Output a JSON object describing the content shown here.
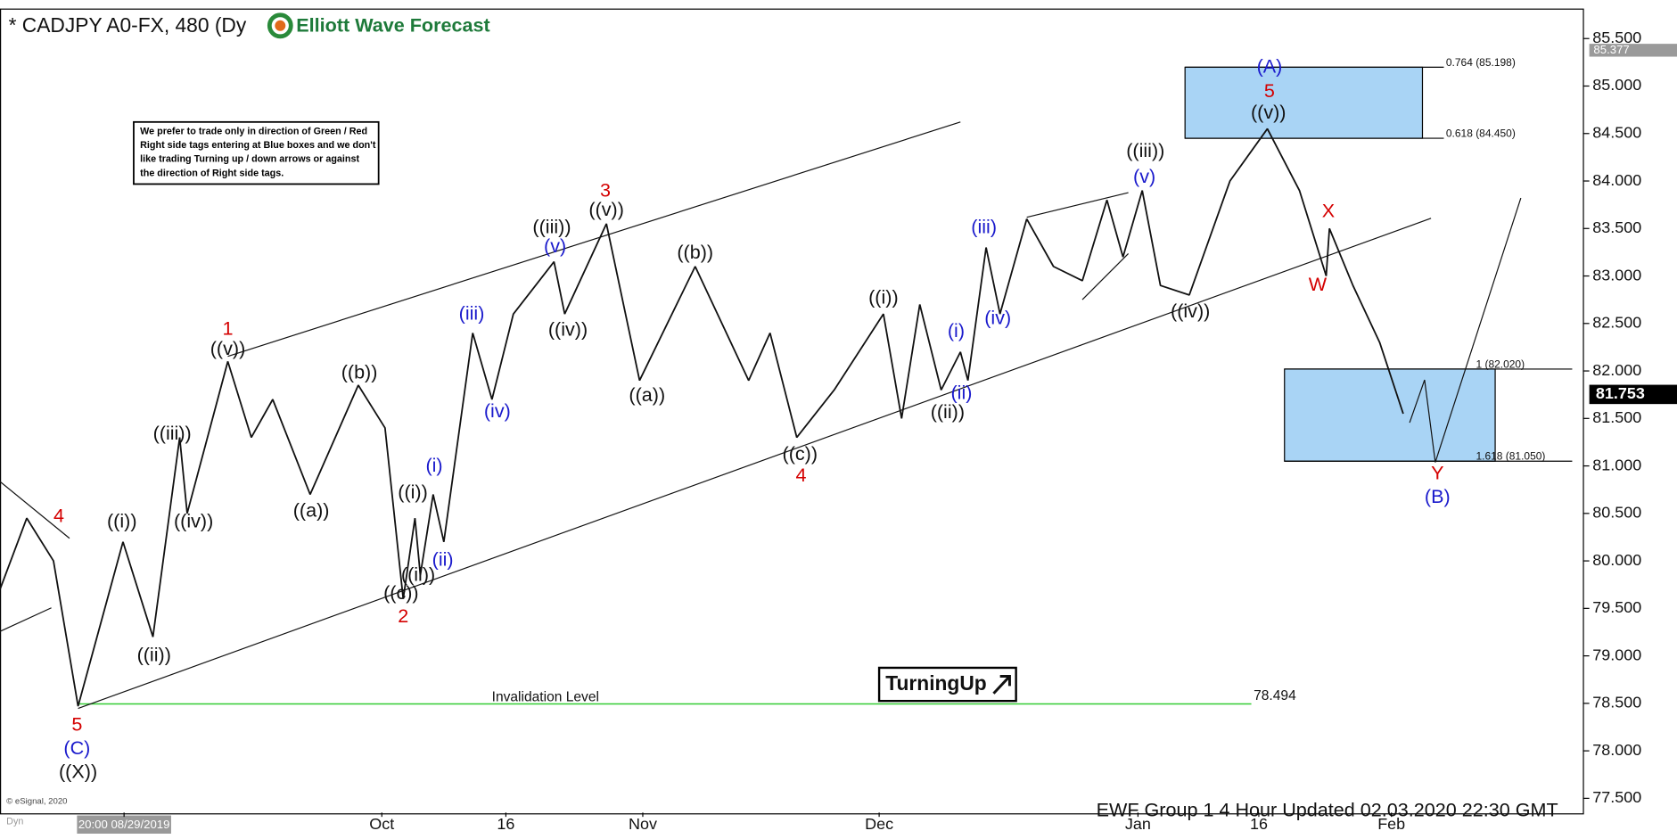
{
  "chart_data": {
    "type": "line",
    "title": "* CADJPY A0-FX, 480 (Dy",
    "logo": "Elliott Wave Forecast",
    "note": [
      "We prefer to trade only in direction of Green / Red",
      "Right side tags entering at Blue boxes and we don't",
      "like trading Turning up / down arrows or against",
      "the direction of Right side tags."
    ],
    "badge": "TurningUp",
    "footer": "EWF Group 1 4 Hour  Updated 02.03.2020 22:30 GMT",
    "credit": "© eSignal, 2020",
    "mode": "Dyn",
    "xlim": [
      0,
      296
    ],
    "ylim": [
      77.35,
      85.8
    ],
    "xticks": [
      {
        "value": 23.2,
        "label": "20:00 08/29/2019"
      },
      {
        "value": 71.4,
        "label": "Oct"
      },
      {
        "value": 94.6,
        "label": "16"
      },
      {
        "value": 120.2,
        "label": "Nov"
      },
      {
        "value": 164.4,
        "label": "Dec"
      },
      {
        "value": 212.8,
        "label": "Jan"
      },
      {
        "value": 235.4,
        "label": "16"
      },
      {
        "value": 260.2,
        "label": "Feb"
      }
    ],
    "yticks": [
      {
        "value": 77.5,
        "label": "77.500"
      },
      {
        "value": 78,
        "label": "78.000"
      },
      {
        "value": 78.5,
        "label": "78.500"
      },
      {
        "value": 79,
        "label": "79.000"
      },
      {
        "value": 79.5,
        "label": "79.500"
      },
      {
        "value": 80,
        "label": "80.000"
      },
      {
        "value": 80.5,
        "label": "80.500"
      },
      {
        "value": 81,
        "label": "81.000"
      },
      {
        "value": 81.5,
        "label": "81.500"
      },
      {
        "value": 82,
        "label": "82.000"
      },
      {
        "value": 82.5,
        "label": "82.500"
      },
      {
        "value": 83,
        "label": "83.000"
      },
      {
        "value": 83.5,
        "label": "83.500"
      },
      {
        "value": 84,
        "label": "84.000"
      },
      {
        "value": 84.5,
        "label": "84.500"
      },
      {
        "value": 85,
        "label": "85.000"
      },
      {
        "value": 85.5,
        "label": "85.500"
      }
    ],
    "series": [
      {
        "name": "CADJPY",
        "color": "#111111",
        "x": [
          0,
          5,
          10,
          14.6,
          23,
          28.6,
          33.6,
          35,
          42.6,
          47,
          51,
          58,
          67,
          72,
          75.4,
          77.6,
          78.6,
          81,
          83,
          88.4,
          92,
          96,
          103.6,
          105.6,
          113.4,
          119.6,
          130,
          140,
          144,
          149,
          156,
          165.2,
          168.6,
          172,
          176,
          179.6,
          181,
          184.4,
          187,
          192,
          197,
          202.4,
          207,
          210,
          213.6,
          217,
          222.4,
          230,
          237,
          243,
          248,
          248.6,
          253,
          258,
          262.4
        ],
        "values": [
          79.7,
          80.45,
          80.0,
          78.47,
          80.2,
          79.2,
          81.3,
          80.5,
          82.1,
          81.3,
          81.7,
          80.7,
          81.85,
          81.4,
          79.6,
          80.45,
          79.85,
          80.7,
          80.2,
          82.4,
          81.7,
          82.6,
          83.15,
          82.6,
          83.55,
          81.9,
          83.1,
          81.9,
          82.4,
          81.3,
          81.8,
          82.6,
          81.5,
          82.7,
          81.8,
          82.2,
          81.9,
          83.3,
          82.6,
          83.6,
          83.1,
          82.95,
          83.8,
          83.2,
          83.9,
          82.9,
          82.8,
          84.0,
          84.55,
          83.9,
          83.0,
          83.5,
          82.9,
          82.3,
          81.55
        ]
      }
    ],
    "zones": [
      {
        "color": "#a9d4f5",
        "ylim": [
          84.45,
          85.198
        ],
        "labels": [
          "0.764 (85.198)",
          "0.618 (84.450)"
        ]
      },
      {
        "color": "#a9d4f5",
        "ylim": [
          81.05,
          82.02
        ],
        "labels": [
          "1 (82.020)",
          "1.618 (81.050)"
        ]
      }
    ],
    "invalidation": {
      "label": "Invalidation Level",
      "value": 78.494,
      "color": "#33cc33"
    },
    "high_marker": 85.377,
    "last_price": 81.753,
    "wave_labels": [
      {
        "text": "4",
        "color": "#d40000"
      },
      {
        "text": "5",
        "color": "#d40000"
      },
      {
        "text": "(C)",
        "color": "#1a1acc"
      },
      {
        "text": "((X))",
        "color": "#111111"
      },
      {
        "text": "((i))",
        "color": "#111111"
      },
      {
        "text": "((ii))",
        "color": "#111111"
      },
      {
        "text": "((iii))",
        "color": "#111111"
      },
      {
        "text": "((iv))",
        "color": "#111111"
      },
      {
        "text": "((v))",
        "color": "#111111"
      },
      {
        "text": "1",
        "color": "#d40000"
      },
      {
        "text": "((a))",
        "color": "#111111"
      },
      {
        "text": "((b))",
        "color": "#111111"
      },
      {
        "text": "((c))",
        "color": "#111111"
      },
      {
        "text": "2",
        "color": "#d40000"
      },
      {
        "text": "((i))",
        "color": "#111111"
      },
      {
        "text": "((ii))",
        "color": "#111111"
      },
      {
        "text": "(i)",
        "color": "#1a1acc"
      },
      {
        "text": "(ii)",
        "color": "#1a1acc"
      },
      {
        "text": "(iii)",
        "color": "#1a1acc"
      },
      {
        "text": "(iv)",
        "color": "#1a1acc"
      },
      {
        "text": "(v)",
        "color": "#1a1acc"
      },
      {
        "text": "((iii))",
        "color": "#111111"
      },
      {
        "text": "((iv))",
        "color": "#111111"
      },
      {
        "text": "((v))",
        "color": "#111111"
      },
      {
        "text": "3",
        "color": "#d40000"
      },
      {
        "text": "((a))",
        "color": "#111111"
      },
      {
        "text": "((b))",
        "color": "#111111"
      },
      {
        "text": "((c))",
        "color": "#111111"
      },
      {
        "text": "4",
        "color": "#d40000"
      },
      {
        "text": "((i))",
        "color": "#111111"
      },
      {
        "text": "(i)",
        "color": "#1a1acc"
      },
      {
        "text": "(ii)",
        "color": "#1a1acc"
      },
      {
        "text": "((ii))",
        "color": "#111111"
      },
      {
        "text": "(iii)",
        "color": "#1a1acc"
      },
      {
        "text": "(iv)",
        "color": "#1a1acc"
      },
      {
        "text": "(v)",
        "color": "#1a1acc"
      },
      {
        "text": "((iii))",
        "color": "#111111"
      },
      {
        "text": "((iv))",
        "color": "#111111"
      },
      {
        "text": "(A)",
        "color": "#1a1acc"
      },
      {
        "text": "5",
        "color": "#d40000"
      },
      {
        "text": "((v))",
        "color": "#111111"
      },
      {
        "text": "W",
        "color": "#d40000"
      },
      {
        "text": "X",
        "color": "#d40000"
      },
      {
        "text": "Y",
        "color": "#d40000"
      },
      {
        "text": "(B)",
        "color": "#1a1acc"
      }
    ]
  }
}
